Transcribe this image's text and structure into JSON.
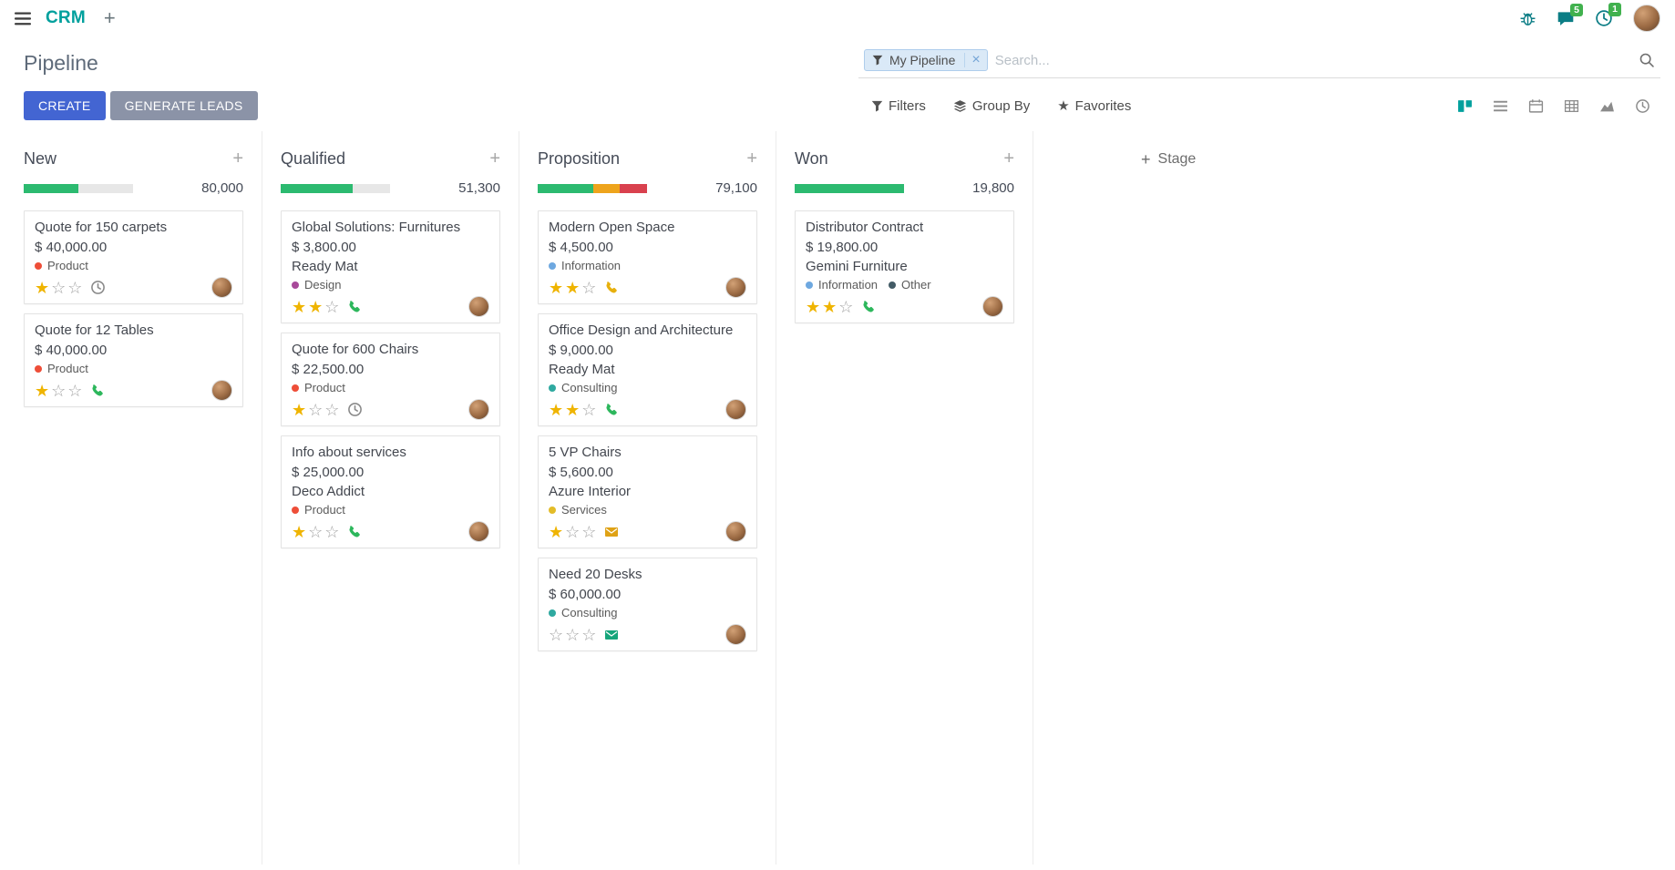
{
  "colors": {
    "brand_teal": "#00a09d",
    "primary_button": "#4365d2",
    "secondary_button": "#8b93a7",
    "progress_green": "#2cba70",
    "progress_yellow": "#eea41c",
    "progress_red": "#d9414e",
    "badge_green": "#41b14e",
    "star_gold": "#efb400"
  },
  "topbar": {
    "app_name": "CRM",
    "messages_badge": "5",
    "activities_badge": "1"
  },
  "control_panel": {
    "breadcrumb": "Pipeline",
    "buttons": {
      "create": "CREATE",
      "generate_leads": "GENERATE LEADS"
    },
    "search": {
      "facet_label": "My Pipeline",
      "placeholder": "Search..."
    },
    "menus": {
      "filters": "Filters",
      "group_by": "Group By",
      "favorites": "Favorites"
    }
  },
  "board": {
    "add_stage_label": "Stage",
    "columns": [
      {
        "name": "New",
        "total": "80,000",
        "progress": [
          {
            "color": "#2cba70",
            "pct": 50
          }
        ],
        "cards": [
          {
            "title": "Quote for 150 carpets",
            "amount": "$ 40,000.00",
            "partner": "",
            "tags": [
              {
                "label": "Product",
                "color": "#ee4e38"
              }
            ],
            "stars": 1,
            "activity": {
              "type": "clock",
              "color": "#8a8a8a"
            }
          },
          {
            "title": "Quote for 12 Tables",
            "amount": "$ 40,000.00",
            "partner": "",
            "tags": [
              {
                "label": "Product",
                "color": "#ee4e38"
              }
            ],
            "stars": 1,
            "activity": {
              "type": "phone",
              "color": "#2db75c"
            }
          }
        ]
      },
      {
        "name": "Qualified",
        "total": "51,300",
        "progress": [
          {
            "color": "#2cba70",
            "pct": 66
          }
        ],
        "cards": [
          {
            "title": "Global Solutions: Furnitures",
            "amount": "$ 3,800.00",
            "partner": "Ready Mat",
            "tags": [
              {
                "label": "Design",
                "color": "#a8499a"
              }
            ],
            "stars": 2,
            "activity": {
              "type": "phone",
              "color": "#2db75c"
            }
          },
          {
            "title": "Quote for 600 Chairs",
            "amount": "$ 22,500.00",
            "partner": "",
            "tags": [
              {
                "label": "Product",
                "color": "#ee4e38"
              }
            ],
            "stars": 1,
            "activity": {
              "type": "clock",
              "color": "#8a8a8a"
            }
          },
          {
            "title": "Info about services",
            "amount": "$ 25,000.00",
            "partner": "Deco Addict",
            "tags": [
              {
                "label": "Product",
                "color": "#ee4e38"
              }
            ],
            "stars": 1,
            "activity": {
              "type": "phone",
              "color": "#2db75c"
            }
          }
        ]
      },
      {
        "name": "Proposition",
        "total": "79,100",
        "progress": [
          {
            "color": "#2cba70",
            "pct": 51
          },
          {
            "color": "#eea41c",
            "pct": 24
          },
          {
            "color": "#d9414e",
            "pct": 25
          }
        ],
        "cards": [
          {
            "title": "Modern Open Space",
            "amount": "$ 4,500.00",
            "partner": "",
            "tags": [
              {
                "label": "Information",
                "color": "#6ea8e0"
              }
            ],
            "stars": 2,
            "activity": {
              "type": "phone",
              "color": "#e7b00d"
            }
          },
          {
            "title": "Office Design and Architecture",
            "amount": "$ 9,000.00",
            "partner": "Ready Mat",
            "tags": [
              {
                "label": "Consulting",
                "color": "#2fa9a0"
              }
            ],
            "stars": 2,
            "activity": {
              "type": "phone",
              "color": "#2db75c"
            }
          },
          {
            "title": "5 VP Chairs",
            "amount": "$ 5,600.00",
            "partner": "Azure Interior",
            "tags": [
              {
                "label": "Services",
                "color": "#e3bc28"
              }
            ],
            "stars": 1,
            "activity": {
              "type": "envelope",
              "color": "#dfa216"
            }
          },
          {
            "title": "Need 20 Desks",
            "amount": "$ 60,000.00",
            "partner": "",
            "tags": [
              {
                "label": "Consulting",
                "color": "#2fa9a0"
              }
            ],
            "stars": 0,
            "activity": {
              "type": "envelope",
              "color": "#16a57b"
            }
          }
        ]
      },
      {
        "name": "Won",
        "total": "19,800",
        "progress": [
          {
            "color": "#2cba70",
            "pct": 100
          }
        ],
        "cards": [
          {
            "title": "Distributor Contract",
            "amount": "$ 19,800.00",
            "partner": "Gemini Furniture",
            "tags": [
              {
                "label": "Information",
                "color": "#6ea8e0"
              },
              {
                "label": "Other",
                "color": "#435b66"
              }
            ],
            "stars": 2,
            "activity": {
              "type": "phone",
              "color": "#2db75c"
            }
          }
        ]
      }
    ]
  }
}
